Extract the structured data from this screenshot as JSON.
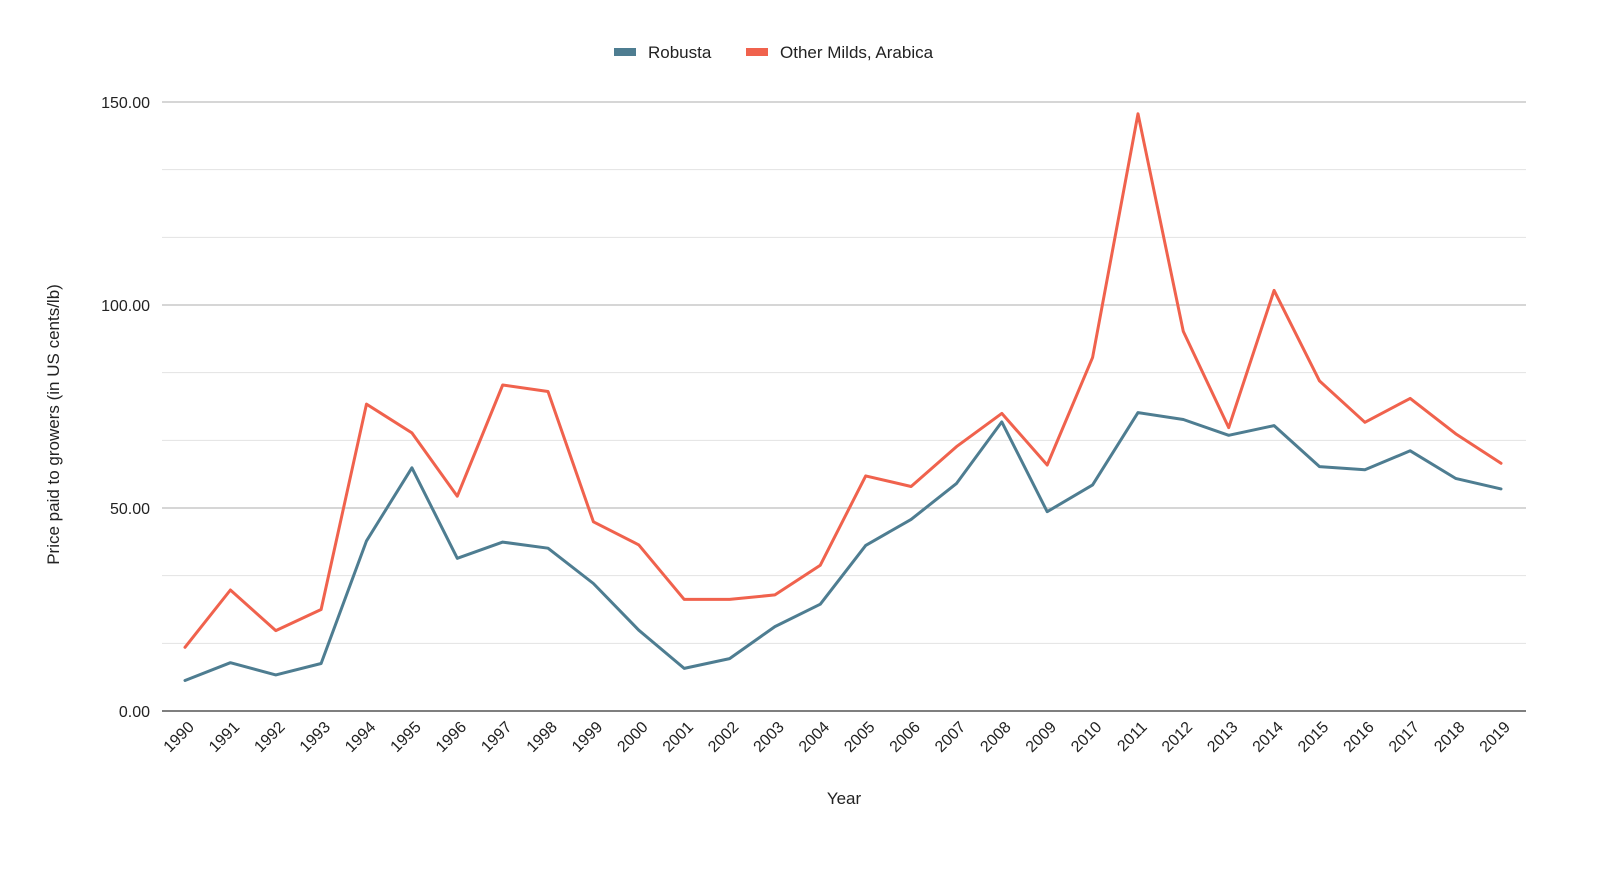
{
  "chart_data": {
    "type": "line",
    "xlabel": "Year",
    "ylabel": "Price paid to growers (in US cents/lb)",
    "ylim": [
      0,
      150
    ],
    "y_major_ticks": [
      "0.00",
      "50.00",
      "100.00",
      "150.00"
    ],
    "y_minor_step": 16.667,
    "grid": true,
    "legend_position": "top-center",
    "categories": [
      "1990",
      "1991",
      "1992",
      "1993",
      "1994",
      "1995",
      "1996",
      "1997",
      "1998",
      "1999",
      "2000",
      "2001",
      "2002",
      "2003",
      "2004",
      "2005",
      "2006",
      "2007",
      "2008",
      "2009",
      "2010",
      "2011",
      "2012",
      "2013",
      "2014",
      "2015",
      "2016",
      "2017",
      "2018",
      "2019"
    ],
    "series": [
      {
        "name": "Robusta",
        "color": "#4e7d91",
        "values": [
          7.5,
          11.9,
          8.9,
          11.7,
          41.9,
          59.9,
          37.6,
          41.6,
          40.1,
          31.4,
          19.9,
          10.5,
          12.9,
          20.8,
          26.3,
          40.8,
          47.2,
          56.0,
          71.2,
          49.1,
          55.7,
          73.5,
          71.8,
          67.9,
          70.3,
          60.2,
          59.4,
          64.1,
          57.3,
          54.7
        ]
      },
      {
        "name": "Other Milds, Arabica",
        "color": "#f0624d",
        "values": [
          15.7,
          29.8,
          19.8,
          25.0,
          75.6,
          68.5,
          52.9,
          80.3,
          78.7,
          46.6,
          40.9,
          27.5,
          27.5,
          28.6,
          35.9,
          57.9,
          55.3,
          65.1,
          73.3,
          60.6,
          87.1,
          147.1,
          93.5,
          69.8,
          103.6,
          81.3,
          71.1,
          77.0,
          68.3,
          61.0
        ]
      }
    ]
  }
}
